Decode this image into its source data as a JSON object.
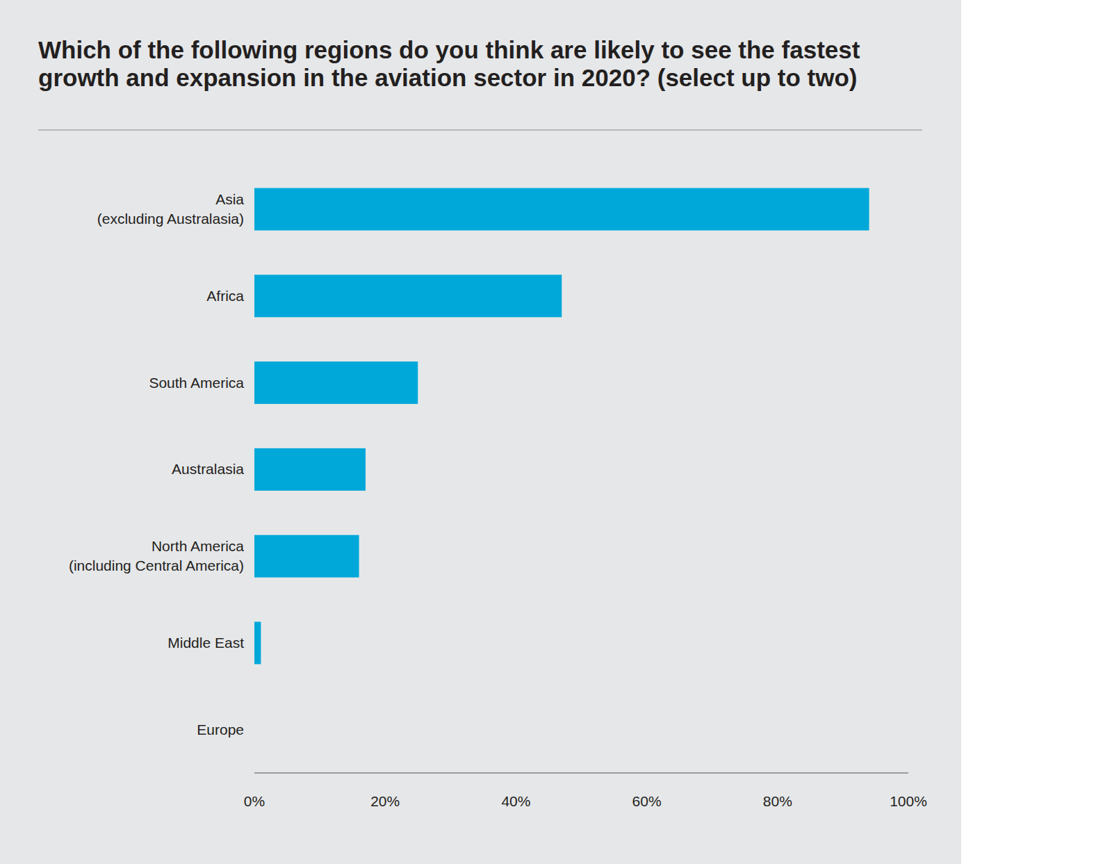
{
  "chart_data": {
    "type": "bar",
    "orientation": "horizontal",
    "title": "Which of the following regions do you think are likely to see the fastest growth and expansion in the aviation sector in 2020? (select up to two)",
    "categories": [
      "Asia (excluding Australasia)",
      "Africa",
      "South America",
      "Australasia",
      "North America (including Central America)",
      "Middle East",
      "Europe"
    ],
    "values": [
      94,
      47,
      25,
      17,
      16,
      1,
      0
    ],
    "color": "#00a8d9",
    "xlim": [
      0,
      100
    ],
    "xticks": [
      {
        "value": 0,
        "label": "0%"
      },
      {
        "value": 20,
        "label": "20%"
      },
      {
        "value": 40,
        "label": "40%"
      },
      {
        "value": 60,
        "label": "60%"
      },
      {
        "value": 80,
        "label": "80%"
      },
      {
        "value": 100,
        "label": "100%"
      }
    ],
    "grid": false
  }
}
